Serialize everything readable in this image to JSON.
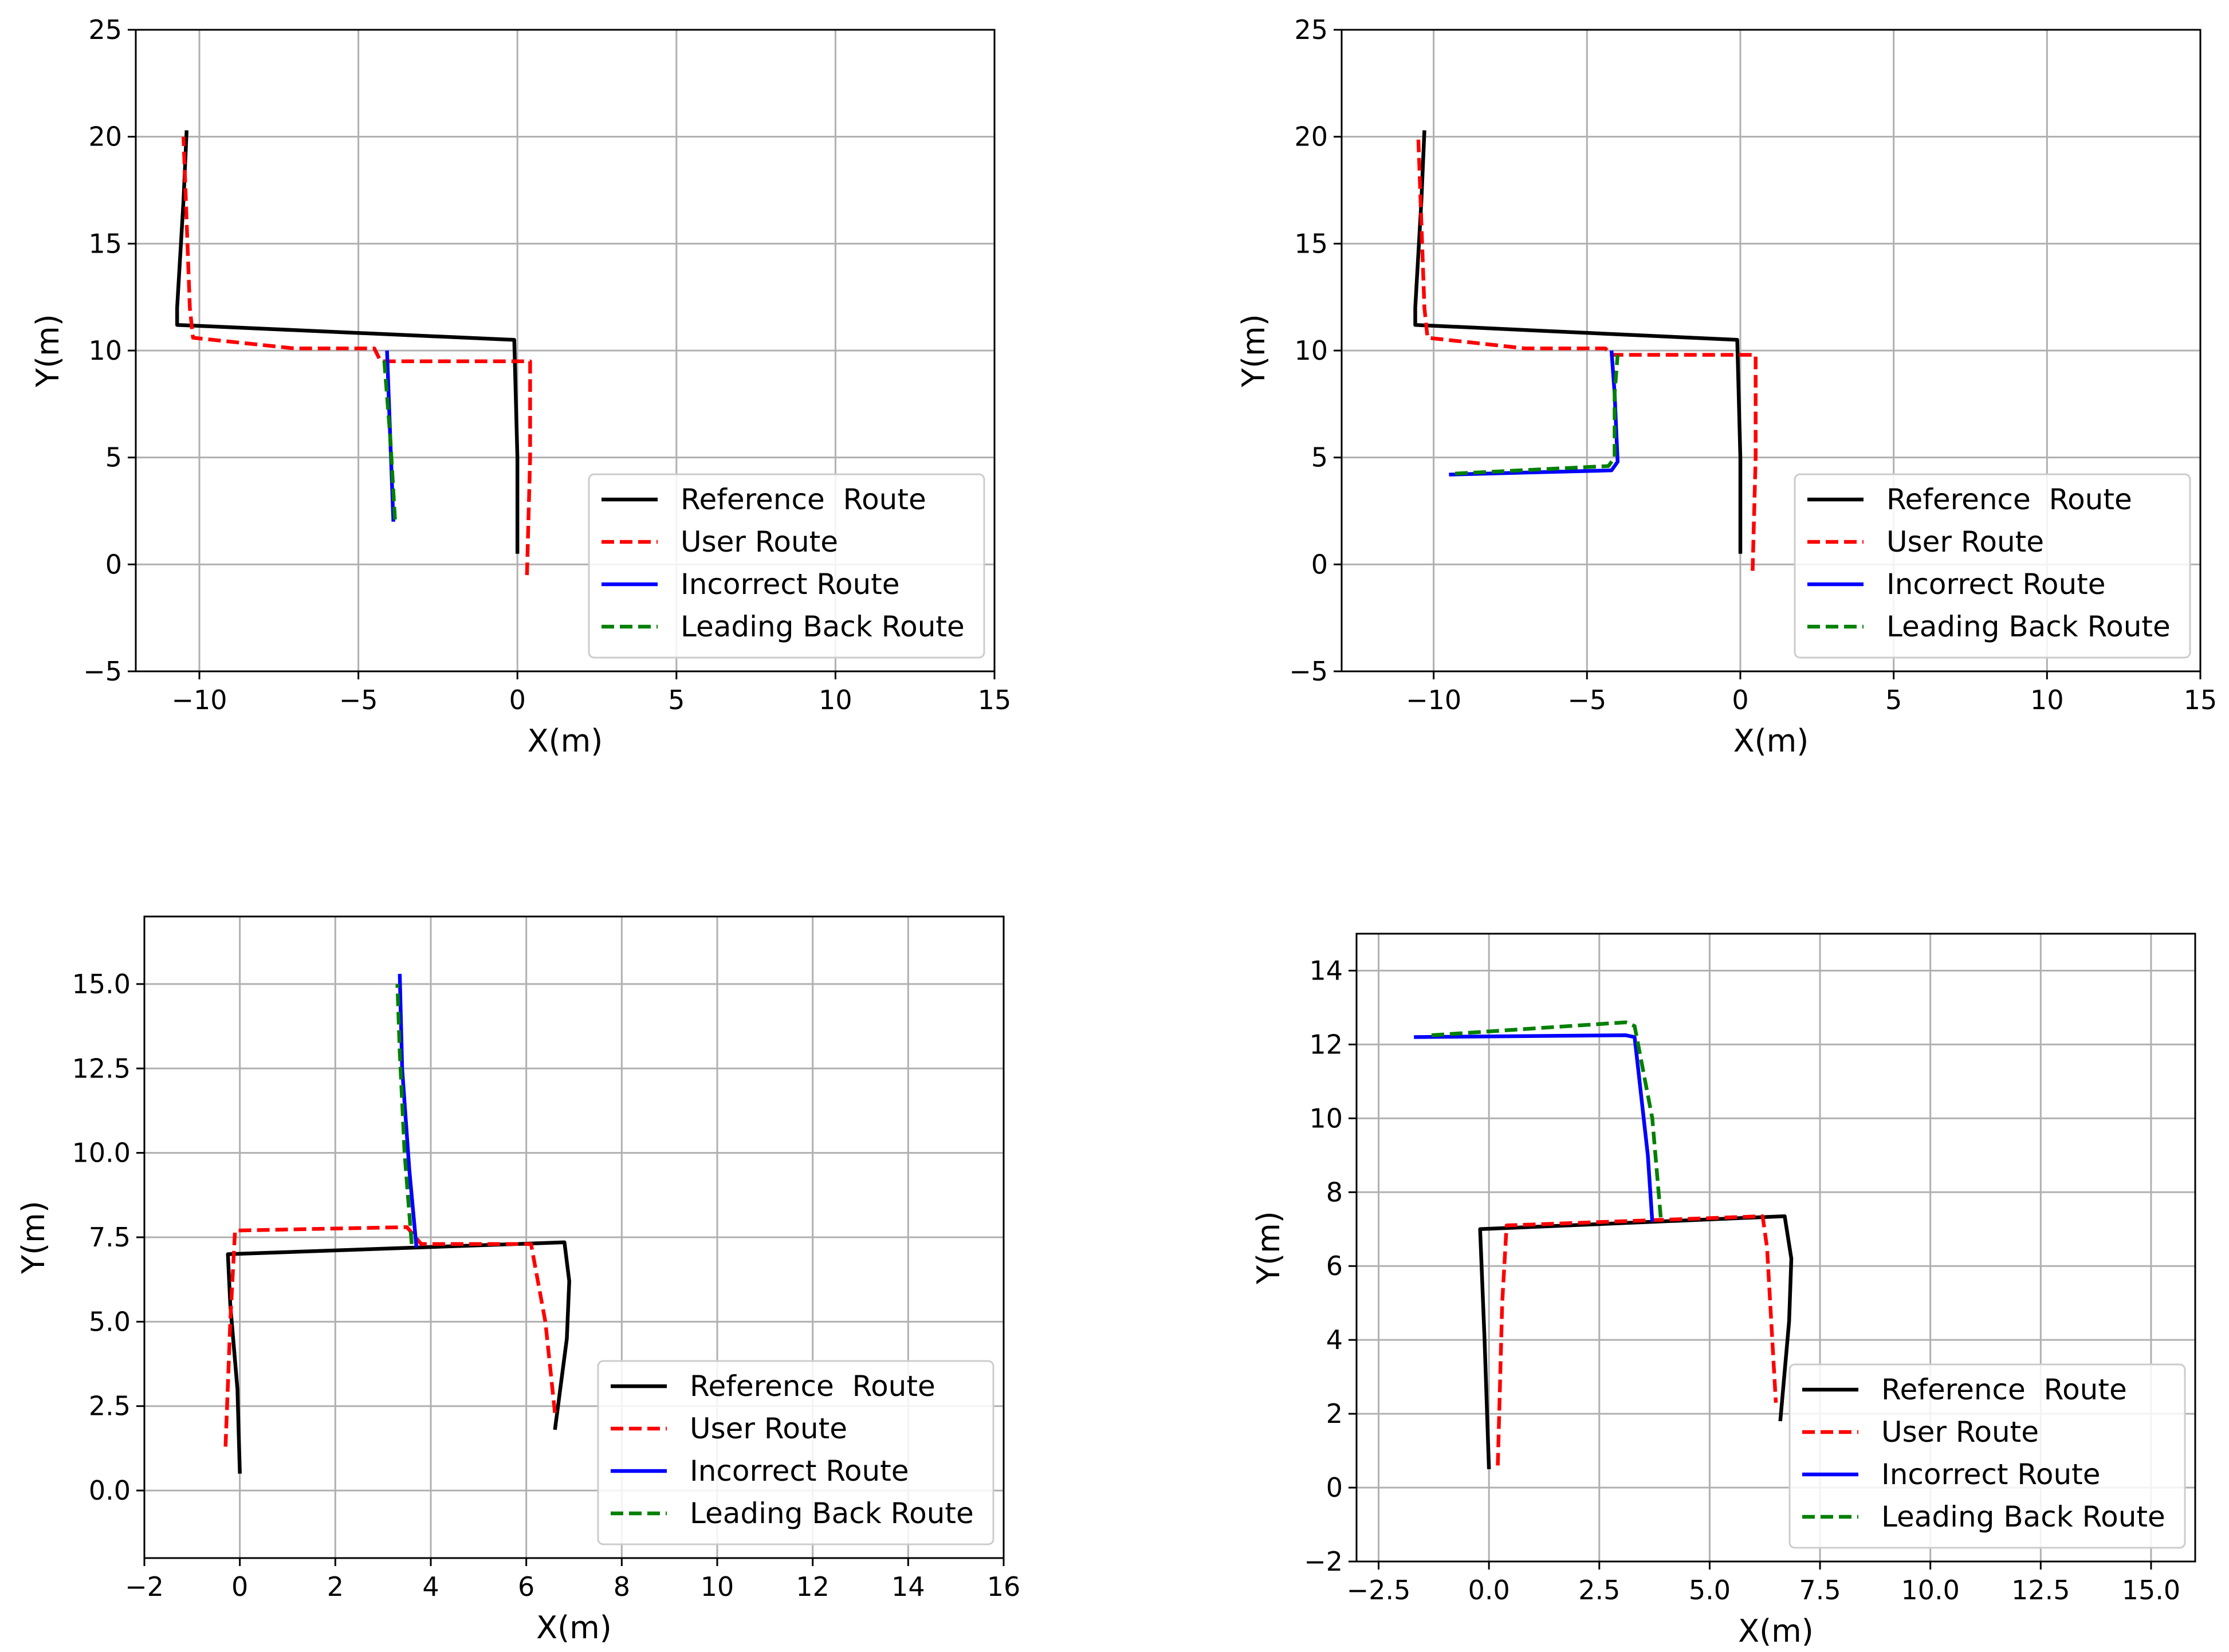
{
  "colors": {
    "reference": "#000000",
    "user": "#ff0000",
    "incorrect": "#0000ff",
    "leading_back": "#008000",
    "grid": "#b0b0b0"
  },
  "chart_data": [
    {
      "type": "line",
      "title": "",
      "xlabel": "X(m)",
      "ylabel": "Y(m)",
      "xlim": [
        -12,
        15
      ],
      "ylim": [
        -5,
        25
      ],
      "xticks": [
        -10,
        -5,
        0,
        5,
        10,
        15
      ],
      "xtick_labels": [
        "−10",
        "−5",
        "0",
        "5",
        "10",
        "15"
      ],
      "yticks": [
        -5,
        0,
        5,
        10,
        15,
        20,
        25
      ],
      "ytick_labels": [
        "−5",
        "0",
        "5",
        "10",
        "15",
        "20",
        "25"
      ],
      "grid": true,
      "legend": "lower-right",
      "series": [
        {
          "name": "Reference  Route",
          "color": "#000000",
          "dash": "solid",
          "x": [
            0,
            0,
            -0.1,
            -10.7,
            -10.7,
            -10.5,
            -10.4
          ],
          "y": [
            0.5,
            5,
            10.5,
            11.2,
            12,
            17,
            20.3
          ]
        },
        {
          "name": "User Route",
          "color": "#ff0000",
          "dash": "dashed",
          "x": [
            0.3,
            0.4,
            0.4,
            -4.3,
            -4.5,
            -7,
            -10.2,
            -10.3,
            -10.5
          ],
          "y": [
            -0.5,
            5,
            9.5,
            9.5,
            10.1,
            10.1,
            10.6,
            12,
            20
          ]
        },
        {
          "name": "Incorrect Route",
          "color": "#0000ff",
          "dash": "solid",
          "x": [
            -3.9,
            -4.0,
            -4.1
          ],
          "y": [
            2,
            6,
            10
          ]
        },
        {
          "name": "Leading Back Route",
          "color": "#008000",
          "dash": "dashed",
          "x": [
            -3.85,
            -4.0,
            -4.2
          ],
          "y": [
            2.1,
            6,
            9.8
          ]
        }
      ]
    },
    {
      "type": "line",
      "title": "",
      "xlabel": "X(m)",
      "ylabel": "Y(m)",
      "xlim": [
        -13,
        15
      ],
      "ylim": [
        -5,
        25
      ],
      "xticks": [
        -10,
        -5,
        0,
        5,
        10,
        15
      ],
      "xtick_labels": [
        "−10",
        "−5",
        "0",
        "5",
        "10",
        "15"
      ],
      "yticks": [
        -5,
        0,
        5,
        10,
        15,
        20,
        25
      ],
      "ytick_labels": [
        "−5",
        "0",
        "5",
        "10",
        "15",
        "20",
        "25"
      ],
      "grid": true,
      "legend": "lower-right",
      "series": [
        {
          "name": "Reference  Route",
          "color": "#000000",
          "dash": "solid",
          "x": [
            0,
            0,
            -0.1,
            -10.6,
            -10.6,
            -10.4,
            -10.3
          ],
          "y": [
            0.5,
            5,
            10.5,
            11.2,
            12,
            17,
            20.3
          ]
        },
        {
          "name": "User Route",
          "color": "#ff0000",
          "dash": "dashed",
          "x": [
            0.4,
            0.5,
            0.5,
            -4.2,
            -4.4,
            -7,
            -10.2,
            -10.3,
            -10.5
          ],
          "y": [
            -0.3,
            5,
            9.8,
            9.8,
            10.1,
            10.1,
            10.6,
            12,
            20
          ]
        },
        {
          "name": "Incorrect Route",
          "color": "#0000ff",
          "dash": "solid",
          "x": [
            -9.5,
            -4.2,
            -4.0,
            -4.1,
            -4.2
          ],
          "y": [
            4.2,
            4.4,
            4.8,
            8,
            10
          ]
        },
        {
          "name": "Leading Back Route",
          "color": "#008000",
          "dash": "dashed",
          "x": [
            -9.3,
            -4.3,
            -4.1,
            -4.1,
            -4.0
          ],
          "y": [
            4.25,
            4.6,
            5,
            8,
            9.8
          ]
        }
      ]
    },
    {
      "type": "line",
      "title": "",
      "xlabel": "X(m)",
      "ylabel": "Y(m)",
      "xlim": [
        -2,
        16
      ],
      "ylim": [
        -2,
        17
      ],
      "xticks": [
        -2,
        0,
        2,
        4,
        6,
        8,
        10,
        12,
        14,
        16
      ],
      "xtick_labels": [
        "−2",
        "0",
        "2",
        "4",
        "6",
        "8",
        "10",
        "12",
        "14",
        "16"
      ],
      "yticks": [
        0,
        2.5,
        5,
        7.5,
        10,
        12.5,
        15
      ],
      "ytick_labels": [
        "0.0",
        "2.5",
        "5.0",
        "7.5",
        "10.0",
        "12.5",
        "15.0"
      ],
      "grid": true,
      "legend": "lower-right",
      "series": [
        {
          "name": "Reference  Route",
          "color": "#000000",
          "dash": "solid",
          "x": [
            0,
            -0.05,
            -0.2,
            -0.25,
            6.8,
            6.9,
            6.85,
            6.6
          ],
          "y": [
            0.5,
            3,
            5.5,
            7,
            7.35,
            6.2,
            4.5,
            1.8
          ]
        },
        {
          "name": "User Route",
          "color": "#ff0000",
          "dash": "dashed",
          "x": [
            -0.3,
            -0.2,
            -0.1,
            3.5,
            3.8,
            6.1,
            6.4,
            6.6
          ],
          "y": [
            1.3,
            5,
            7.7,
            7.8,
            7.3,
            7.3,
            5,
            2.3
          ]
        },
        {
          "name": "Incorrect Route",
          "color": "#0000ff",
          "dash": "solid",
          "x": [
            3.7,
            3.55,
            3.4,
            3.35
          ],
          "y": [
            7.2,
            9.5,
            12.5,
            15.3
          ]
        },
        {
          "name": "Leading Back Route",
          "color": "#008000",
          "dash": "dashed",
          "x": [
            3.6,
            3.45,
            3.35,
            3.3
          ],
          "y": [
            7.3,
            10,
            13,
            15
          ]
        }
      ]
    },
    {
      "type": "line",
      "title": "",
      "xlabel": "X(m)",
      "ylabel": "Y(m)",
      "xlim": [
        -3,
        16
      ],
      "ylim": [
        -2,
        15
      ],
      "xticks": [
        -2.5,
        0,
        2.5,
        5,
        7.5,
        10,
        12.5,
        15
      ],
      "xtick_labels": [
        "−2.5",
        "0.0",
        "2.5",
        "5.0",
        "7.5",
        "10.0",
        "12.5",
        "15.0"
      ],
      "yticks": [
        -2,
        0,
        2,
        4,
        6,
        8,
        10,
        12,
        14
      ],
      "ytick_labels": [
        "−2",
        "0",
        "2",
        "4",
        "6",
        "8",
        "10",
        "12",
        "14"
      ],
      "grid": true,
      "legend": "lower-right",
      "series": [
        {
          "name": "Reference  Route",
          "color": "#000000",
          "dash": "solid",
          "x": [
            0,
            -0.1,
            -0.2,
            6.7,
            6.85,
            6.8,
            6.6
          ],
          "y": [
            0.5,
            4,
            7,
            7.35,
            6.2,
            4.5,
            1.8
          ]
        },
        {
          "name": "User Route",
          "color": "#ff0000",
          "dash": "dashed",
          "x": [
            0.2,
            0.3,
            0.4,
            6.2,
            6.3,
            6.5
          ],
          "y": [
            0.6,
            5,
            7.1,
            7.35,
            6.5,
            2.3
          ]
        },
        {
          "name": "Incorrect Route",
          "color": "#0000ff",
          "dash": "solid",
          "x": [
            -1.7,
            3.1,
            3.3,
            3.6,
            3.7
          ],
          "y": [
            12.2,
            12.25,
            12.2,
            9,
            7.2
          ]
        },
        {
          "name": "Leading Back Route",
          "color": "#008000",
          "dash": "dashed",
          "x": [
            -1.3,
            3.1,
            3.3,
            3.7,
            3.9
          ],
          "y": [
            12.25,
            12.6,
            12.5,
            10,
            7.2
          ]
        }
      ]
    }
  ]
}
